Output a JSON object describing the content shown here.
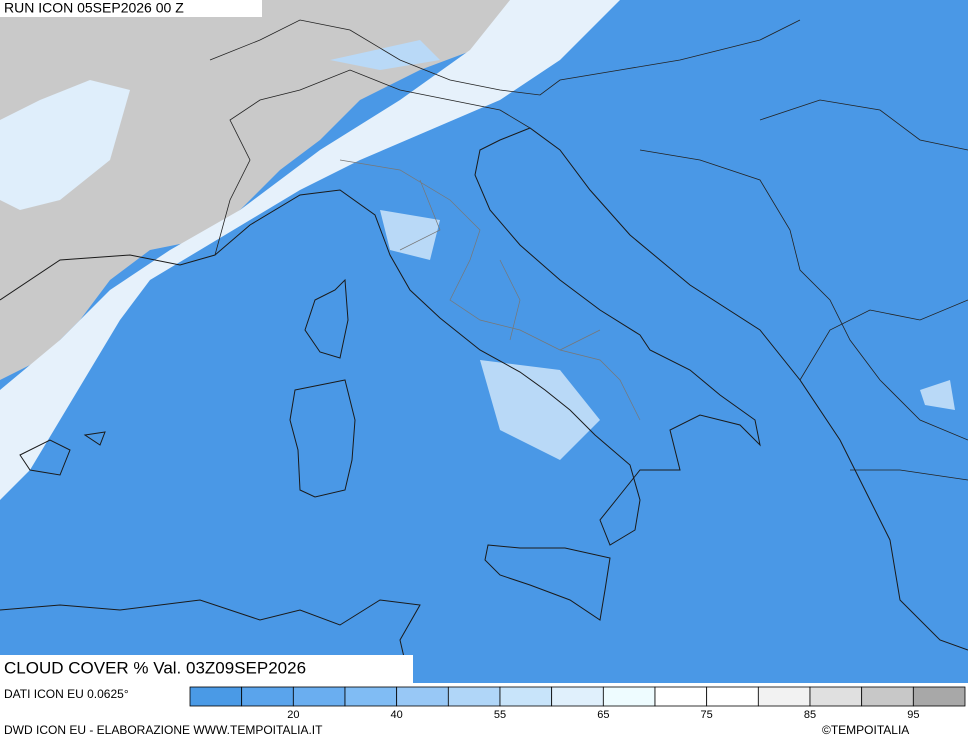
{
  "header": {
    "run": "RUN ICON 05SEP2026 00 Z"
  },
  "map": {
    "variable": "CLOUD COVER % Val. 03Z09SEP2026"
  },
  "legend": {
    "source": "DATI ICON EU 0.0625°",
    "colors": [
      "#4a9ae6",
      "#5aa4ec",
      "#6aaef0",
      "#80bcf4",
      "#98c8f6",
      "#b0d6f8",
      "#c8e4fa",
      "#e0f0fc",
      "#eefcff",
      "#ffffff",
      "#ffffff",
      "#f2f2f2",
      "#e0e0e0",
      "#c8c8c8",
      "#a8a8a8"
    ],
    "boundaries": [
      null,
      "20",
      null,
      "40",
      null,
      "55",
      null,
      "65",
      null,
      "75",
      null,
      "85",
      null,
      "95"
    ]
  },
  "footer": {
    "credit": "DWD ICON EU - ELABORAZIONE WWW.TEMPOITALIA.IT",
    "copyright": "©TEMPOITALIA"
  }
}
